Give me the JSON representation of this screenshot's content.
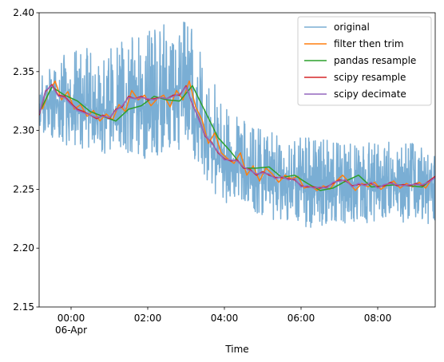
{
  "chart_data": {
    "type": "line",
    "title": "",
    "xlabel": "Time",
    "ylabel": "",
    "ylim": [
      2.15,
      2.4
    ],
    "xlim": [
      "2023-04-05 23:10",
      "2023-04-06 09:30"
    ],
    "x_ticks": [
      {
        "time": "2023-04-06 00:00",
        "label": "00:00",
        "sublabel": "06-Apr"
      },
      {
        "time": "2023-04-06 02:00",
        "label": "02:00",
        "sublabel": ""
      },
      {
        "time": "2023-04-06 04:00",
        "label": "04:00",
        "sublabel": ""
      },
      {
        "time": "2023-04-06 06:00",
        "label": "06:00",
        "sublabel": ""
      },
      {
        "time": "2023-04-06 08:00",
        "label": "08:00",
        "sublabel": ""
      }
    ],
    "y_ticks": [
      "2.15",
      "2.20",
      "2.25",
      "2.30",
      "2.35",
      "2.40"
    ],
    "y_tick_values": [
      2.15,
      2.2,
      2.25,
      2.3,
      2.35,
      2.4
    ],
    "legend": {
      "placement": "upper-right"
    },
    "original": {
      "name": "original",
      "color": "#7aaed4",
      "x": [
        "2023-04-05 23:10",
        "2023-04-06 00:00",
        "2023-04-06 01:00",
        "2023-04-06 02:00",
        "2023-04-06 03:00",
        "2023-04-06 04:00",
        "2023-04-06 05:00",
        "2023-04-06 06:00",
        "2023-04-06 07:00",
        "2023-04-06 08:00",
        "2023-04-06 09:30"
      ],
      "center": [
        2.325,
        2.325,
        2.315,
        2.325,
        2.33,
        2.27,
        2.26,
        2.255,
        2.255,
        2.255,
        2.255
      ],
      "low": [
        2.3,
        2.285,
        2.28,
        2.275,
        2.28,
        2.235,
        2.225,
        2.215,
        2.22,
        2.22,
        2.22
      ],
      "high": [
        2.345,
        2.37,
        2.37,
        2.39,
        2.4,
        2.32,
        2.3,
        2.295,
        2.29,
        2.29,
        2.29
      ]
    },
    "series": [
      {
        "name": "filter then trim",
        "color": "#ff7f0e",
        "x": [
          "2023-04-05 23:15",
          "2023-04-05 23:25",
          "2023-04-05 23:35",
          "2023-04-05 23:45",
          "2023-04-05 23:55",
          "2023-04-06 00:05",
          "2023-04-06 00:15",
          "2023-04-06 00:25",
          "2023-04-06 00:35",
          "2023-04-06 00:45",
          "2023-04-06 00:55",
          "2023-04-06 01:05",
          "2023-04-06 01:15",
          "2023-04-06 01:25",
          "2023-04-06 01:35",
          "2023-04-06 01:45",
          "2023-04-06 01:55",
          "2023-04-06 02:05",
          "2023-04-06 02:15",
          "2023-04-06 02:25",
          "2023-04-06 02:35",
          "2023-04-06 02:45",
          "2023-04-06 02:55",
          "2023-04-06 03:05",
          "2023-04-06 03:15",
          "2023-04-06 03:25",
          "2023-04-06 03:35",
          "2023-04-06 03:45",
          "2023-04-06 03:55",
          "2023-04-06 04:05",
          "2023-04-06 04:15",
          "2023-04-06 04:25",
          "2023-04-06 04:35",
          "2023-04-06 04:45",
          "2023-04-06 04:55",
          "2023-04-06 05:05",
          "2023-04-06 05:15",
          "2023-04-06 05:25",
          "2023-04-06 05:35",
          "2023-04-06 05:45",
          "2023-04-06 05:55",
          "2023-04-06 06:05",
          "2023-04-06 06:15",
          "2023-04-06 06:25",
          "2023-04-06 06:35",
          "2023-04-06 06:45",
          "2023-04-06 06:55",
          "2023-04-06 07:05",
          "2023-04-06 07:15",
          "2023-04-06 07:25",
          "2023-04-06 07:35",
          "2023-04-06 07:45",
          "2023-04-06 07:55",
          "2023-04-06 08:05",
          "2023-04-06 08:15",
          "2023-04-06 08:25",
          "2023-04-06 08:35",
          "2023-04-06 08:45",
          "2023-04-06 08:55",
          "2023-04-06 09:05",
          "2023-04-06 09:15",
          "2023-04-06 09:25"
        ],
        "values": [
          2.318,
          2.332,
          2.342,
          2.326,
          2.333,
          2.318,
          2.322,
          2.312,
          2.317,
          2.308,
          2.314,
          2.309,
          2.322,
          2.316,
          2.334,
          2.326,
          2.33,
          2.321,
          2.327,
          2.33,
          2.32,
          2.334,
          2.326,
          2.342,
          2.32,
          2.309,
          2.289,
          2.298,
          2.281,
          2.276,
          2.272,
          2.281,
          2.262,
          2.27,
          2.257,
          2.268,
          2.263,
          2.256,
          2.262,
          2.259,
          2.261,
          2.251,
          2.253,
          2.249,
          2.253,
          2.25,
          2.257,
          2.262,
          2.256,
          2.249,
          2.255,
          2.252,
          2.256,
          2.25,
          2.254,
          2.257,
          2.251,
          2.255,
          2.252,
          2.256,
          2.251,
          2.259
        ]
      },
      {
        "name": "pandas resample",
        "color": "#2ca02c",
        "x": [
          "2023-04-05 23:10",
          "2023-04-05 23:30",
          "2023-04-05 23:50",
          "2023-04-06 00:10",
          "2023-04-06 00:30",
          "2023-04-06 00:50",
          "2023-04-06 01:10",
          "2023-04-06 01:30",
          "2023-04-06 01:50",
          "2023-04-06 02:10",
          "2023-04-06 02:30",
          "2023-04-06 02:50",
          "2023-04-06 03:10",
          "2023-04-06 03:30",
          "2023-04-06 03:50",
          "2023-04-06 04:10",
          "2023-04-06 04:30",
          "2023-04-06 04:50",
          "2023-04-06 05:10",
          "2023-04-06 05:30",
          "2023-04-06 05:50",
          "2023-04-06 06:10",
          "2023-04-06 06:30",
          "2023-04-06 06:50",
          "2023-04-06 07:10",
          "2023-04-06 07:30",
          "2023-04-06 07:50",
          "2023-04-06 08:10",
          "2023-04-06 08:30",
          "2023-04-06 08:50",
          "2023-04-06 09:10",
          "2023-04-06 09:30"
        ],
        "values": [
          2.315,
          2.337,
          2.33,
          2.325,
          2.316,
          2.312,
          2.308,
          2.318,
          2.321,
          2.329,
          2.326,
          2.325,
          2.338,
          2.316,
          2.294,
          2.282,
          2.268,
          2.268,
          2.269,
          2.26,
          2.262,
          2.255,
          2.249,
          2.251,
          2.257,
          2.262,
          2.252,
          2.253,
          2.254,
          2.253,
          2.252,
          2.261
        ]
      },
      {
        "name": "scipy resample",
        "color": "#d62728",
        "x": [
          "2023-04-05 23:10",
          "2023-04-05 23:20",
          "2023-04-05 23:30",
          "2023-04-05 23:40",
          "2023-04-05 23:50",
          "2023-04-06 00:00",
          "2023-04-06 00:10",
          "2023-04-06 00:20",
          "2023-04-06 00:30",
          "2023-04-06 00:40",
          "2023-04-06 00:50",
          "2023-04-06 01:00",
          "2023-04-06 01:10",
          "2023-04-06 01:20",
          "2023-04-06 01:30",
          "2023-04-06 01:40",
          "2023-04-06 01:50",
          "2023-04-06 02:00",
          "2023-04-06 02:10",
          "2023-04-06 02:20",
          "2023-04-06 02:30",
          "2023-04-06 02:40",
          "2023-04-06 02:50",
          "2023-04-06 03:00",
          "2023-04-06 03:10",
          "2023-04-06 03:20",
          "2023-04-06 03:30",
          "2023-04-06 03:40",
          "2023-04-06 03:50",
          "2023-04-06 04:00",
          "2023-04-06 04:10",
          "2023-04-06 04:20",
          "2023-04-06 04:30",
          "2023-04-06 04:40",
          "2023-04-06 04:50",
          "2023-04-06 05:00",
          "2023-04-06 05:10",
          "2023-04-06 05:20",
          "2023-04-06 05:30",
          "2023-04-06 05:40",
          "2023-04-06 05:50",
          "2023-04-06 06:00",
          "2023-04-06 06:10",
          "2023-04-06 06:20",
          "2023-04-06 06:30",
          "2023-04-06 06:40",
          "2023-04-06 06:50",
          "2023-04-06 07:00",
          "2023-04-06 07:10",
          "2023-04-06 07:20",
          "2023-04-06 07:30",
          "2023-04-06 07:40",
          "2023-04-06 07:50",
          "2023-04-06 08:00",
          "2023-04-06 08:10",
          "2023-04-06 08:20",
          "2023-04-06 08:30",
          "2023-04-06 08:40",
          "2023-04-06 08:50",
          "2023-04-06 09:00",
          "2023-04-06 09:10",
          "2023-04-06 09:20",
          "2023-04-06 09:30"
        ],
        "values": [
          2.313,
          2.333,
          2.339,
          2.33,
          2.329,
          2.323,
          2.318,
          2.316,
          2.313,
          2.31,
          2.313,
          2.31,
          2.318,
          2.32,
          2.329,
          2.327,
          2.329,
          2.326,
          2.327,
          2.328,
          2.327,
          2.33,
          2.33,
          2.338,
          2.322,
          2.31,
          2.295,
          2.29,
          2.281,
          2.276,
          2.274,
          2.275,
          2.268,
          2.267,
          2.262,
          2.265,
          2.262,
          2.26,
          2.26,
          2.259,
          2.258,
          2.253,
          2.252,
          2.252,
          2.251,
          2.252,
          2.255,
          2.258,
          2.257,
          2.253,
          2.254,
          2.254,
          2.255,
          2.252,
          2.253,
          2.256,
          2.253,
          2.254,
          2.253,
          2.255,
          2.253,
          2.257,
          2.261
        ]
      },
      {
        "name": "scipy decimate",
        "color": "#9467bd",
        "x": [
          "2023-04-05 23:10",
          "2023-04-05 23:20",
          "2023-04-05 23:30",
          "2023-04-05 23:40",
          "2023-04-05 23:50",
          "2023-04-06 00:00",
          "2023-04-06 00:10",
          "2023-04-06 00:20",
          "2023-04-06 00:30",
          "2023-04-06 00:40",
          "2023-04-06 00:50",
          "2023-04-06 01:00",
          "2023-04-06 01:10",
          "2023-04-06 01:20",
          "2023-04-06 01:30",
          "2023-04-06 01:40",
          "2023-04-06 01:50",
          "2023-04-06 02:00",
          "2023-04-06 02:10",
          "2023-04-06 02:20",
          "2023-04-06 02:30",
          "2023-04-06 02:40",
          "2023-04-06 02:50",
          "2023-04-06 03:00",
          "2023-04-06 03:10",
          "2023-04-06 03:20",
          "2023-04-06 03:30",
          "2023-04-06 03:40",
          "2023-04-06 03:50",
          "2023-04-06 04:00",
          "2023-04-06 04:10",
          "2023-04-06 04:20",
          "2023-04-06 04:30",
          "2023-04-06 04:40",
          "2023-04-06 04:50",
          "2023-04-06 05:00",
          "2023-04-06 05:10",
          "2023-04-06 05:20",
          "2023-04-06 05:30",
          "2023-04-06 05:40",
          "2023-04-06 05:50",
          "2023-04-06 06:00",
          "2023-04-06 06:10",
          "2023-04-06 06:20",
          "2023-04-06 06:30",
          "2023-04-06 06:40",
          "2023-04-06 06:50",
          "2023-04-06 07:00",
          "2023-04-06 07:10",
          "2023-04-06 07:20",
          "2023-04-06 07:30",
          "2023-04-06 07:40",
          "2023-04-06 07:50",
          "2023-04-06 08:00",
          "2023-04-06 08:10",
          "2023-04-06 08:20",
          "2023-04-06 08:30",
          "2023-04-06 08:40",
          "2023-04-06 08:50",
          "2023-04-06 09:00",
          "2023-04-06 09:10",
          "2023-04-06 09:20",
          "2023-04-06 09:30"
        ],
        "values": [
          2.314,
          2.334,
          2.338,
          2.329,
          2.328,
          2.322,
          2.317,
          2.315,
          2.313,
          2.311,
          2.312,
          2.311,
          2.317,
          2.321,
          2.328,
          2.327,
          2.328,
          2.327,
          2.326,
          2.328,
          2.327,
          2.329,
          2.331,
          2.337,
          2.323,
          2.309,
          2.296,
          2.289,
          2.282,
          2.275,
          2.275,
          2.274,
          2.269,
          2.266,
          2.263,
          2.264,
          2.263,
          2.259,
          2.261,
          2.258,
          2.259,
          2.252,
          2.253,
          2.251,
          2.252,
          2.251,
          2.256,
          2.257,
          2.258,
          2.252,
          2.255,
          2.253,
          2.256,
          2.251,
          2.254,
          2.255,
          2.254,
          2.253,
          2.254,
          2.254,
          2.254,
          2.256,
          2.26
        ]
      }
    ]
  }
}
